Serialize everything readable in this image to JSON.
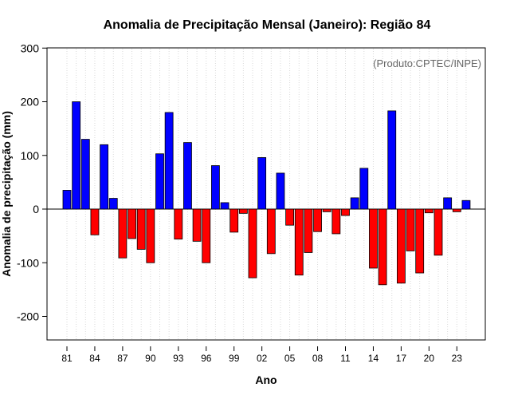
{
  "chart_data": {
    "type": "bar",
    "title": "Anomalia de Precipitação Mensal (Janeiro): Região 84",
    "xlabel": "Ano",
    "ylabel": "Anomalia de precipitação (mm)",
    "credit": "(Produto:CPTEC/INPE)",
    "ylim": [
      -240,
      300
    ],
    "yticks": [
      300,
      200,
      100,
      0,
      -100,
      -200
    ],
    "years": [
      "81",
      "82",
      "83",
      "84",
      "85",
      "86",
      "87",
      "88",
      "89",
      "90",
      "91",
      "92",
      "93",
      "94",
      "95",
      "96",
      "97",
      "98",
      "99",
      "00",
      "01",
      "02",
      "03",
      "04",
      "05",
      "06",
      "07",
      "08",
      "09",
      "10",
      "11",
      "12",
      "13",
      "14",
      "15",
      "16",
      "17",
      "18",
      "19",
      "20",
      "21",
      "22",
      "23",
      "24"
    ],
    "xtick_labels": [
      "81",
      "84",
      "87",
      "90",
      "93",
      "96",
      "99",
      "02",
      "05",
      "08",
      "11",
      "14",
      "17",
      "20",
      "23"
    ],
    "values": [
      35,
      200,
      130,
      -48,
      120,
      20,
      -91,
      -55,
      -75,
      -100,
      103,
      180,
      -56,
      124,
      -60,
      -100,
      81,
      12,
      -43,
      -8,
      -128,
      96,
      -83,
      67,
      -30,
      -123,
      -81,
      -42,
      -5,
      -46,
      -12,
      21,
      76,
      -110,
      -141,
      183,
      -138,
      -78,
      -119,
      -7,
      -86,
      21,
      -5,
      16
    ],
    "colors": {
      "positive": "#0000ff",
      "negative": "#ff0000",
      "grid": "#d9d9d9",
      "axis": "#000000"
    }
  }
}
